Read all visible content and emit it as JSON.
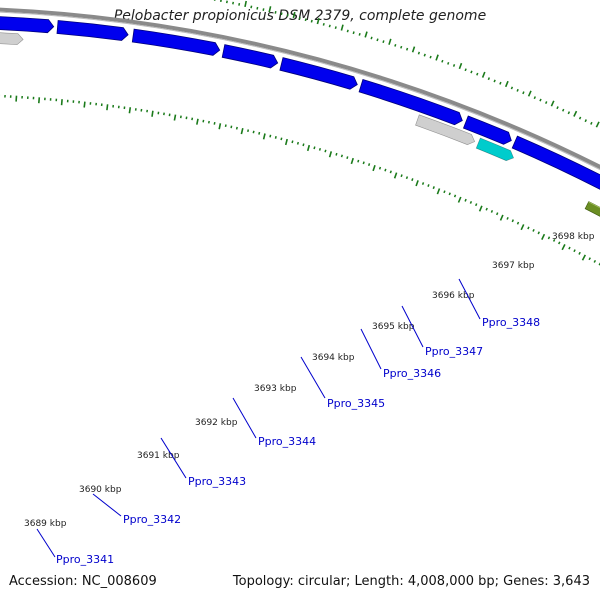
{
  "title": "Pelobacter propionicus DSM 2379, complete genome",
  "footer": {
    "accession": "Accession: NC_008609",
    "summary": "Topology: circular; Length: 4,008,000 bp; Genes: 3,643"
  },
  "colors": {
    "backbone": "#8a8a8a",
    "cds": "#0000ee",
    "cds_edge": "#00007a",
    "pseudo": "#cfcfcf",
    "trna": "#00cccc",
    "rrna": "#f08a8a",
    "gc_skew": "#6b8e23",
    "ticks": "#1a7a1a",
    "gene_label": "#0000cc"
  },
  "ruler": [
    "3689 kbp",
    "3690 kbp",
    "3691 kbp",
    "3692 kbp",
    "3693 kbp",
    "3694 kbp",
    "3695 kbp",
    "3696 kbp",
    "3697 kbp",
    "3698 kbp"
  ],
  "gene_labels": [
    "Ppro_3341",
    "Ppro_3342",
    "Ppro_3343",
    "Ppro_3344",
    "Ppro_3345",
    "Ppro_3346",
    "Ppro_3347",
    "Ppro_3348"
  ]
}
